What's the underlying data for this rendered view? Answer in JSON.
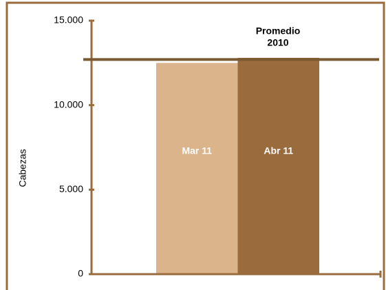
{
  "chart_data": {
    "type": "bar",
    "categories": [
      "Mar 11",
      "Abr 11"
    ],
    "values": [
      12500,
      12800
    ],
    "colors": [
      "#dbb48c",
      "#9a6b3d"
    ],
    "ylabel": "Cabezas",
    "ylim": [
      0,
      15000
    ],
    "yticks": [
      {
        "value": 0,
        "label": "0"
      },
      {
        "value": 5000,
        "label": "5.000"
      },
      {
        "value": 10000,
        "label": "10.000"
      },
      {
        "value": 15000,
        "label": "15.000"
      }
    ],
    "reference_line": {
      "value": 12700,
      "label": [
        "Promedio",
        "2010"
      ],
      "color": "#7a5a30"
    },
    "axis_color": "#9a6b3d"
  }
}
